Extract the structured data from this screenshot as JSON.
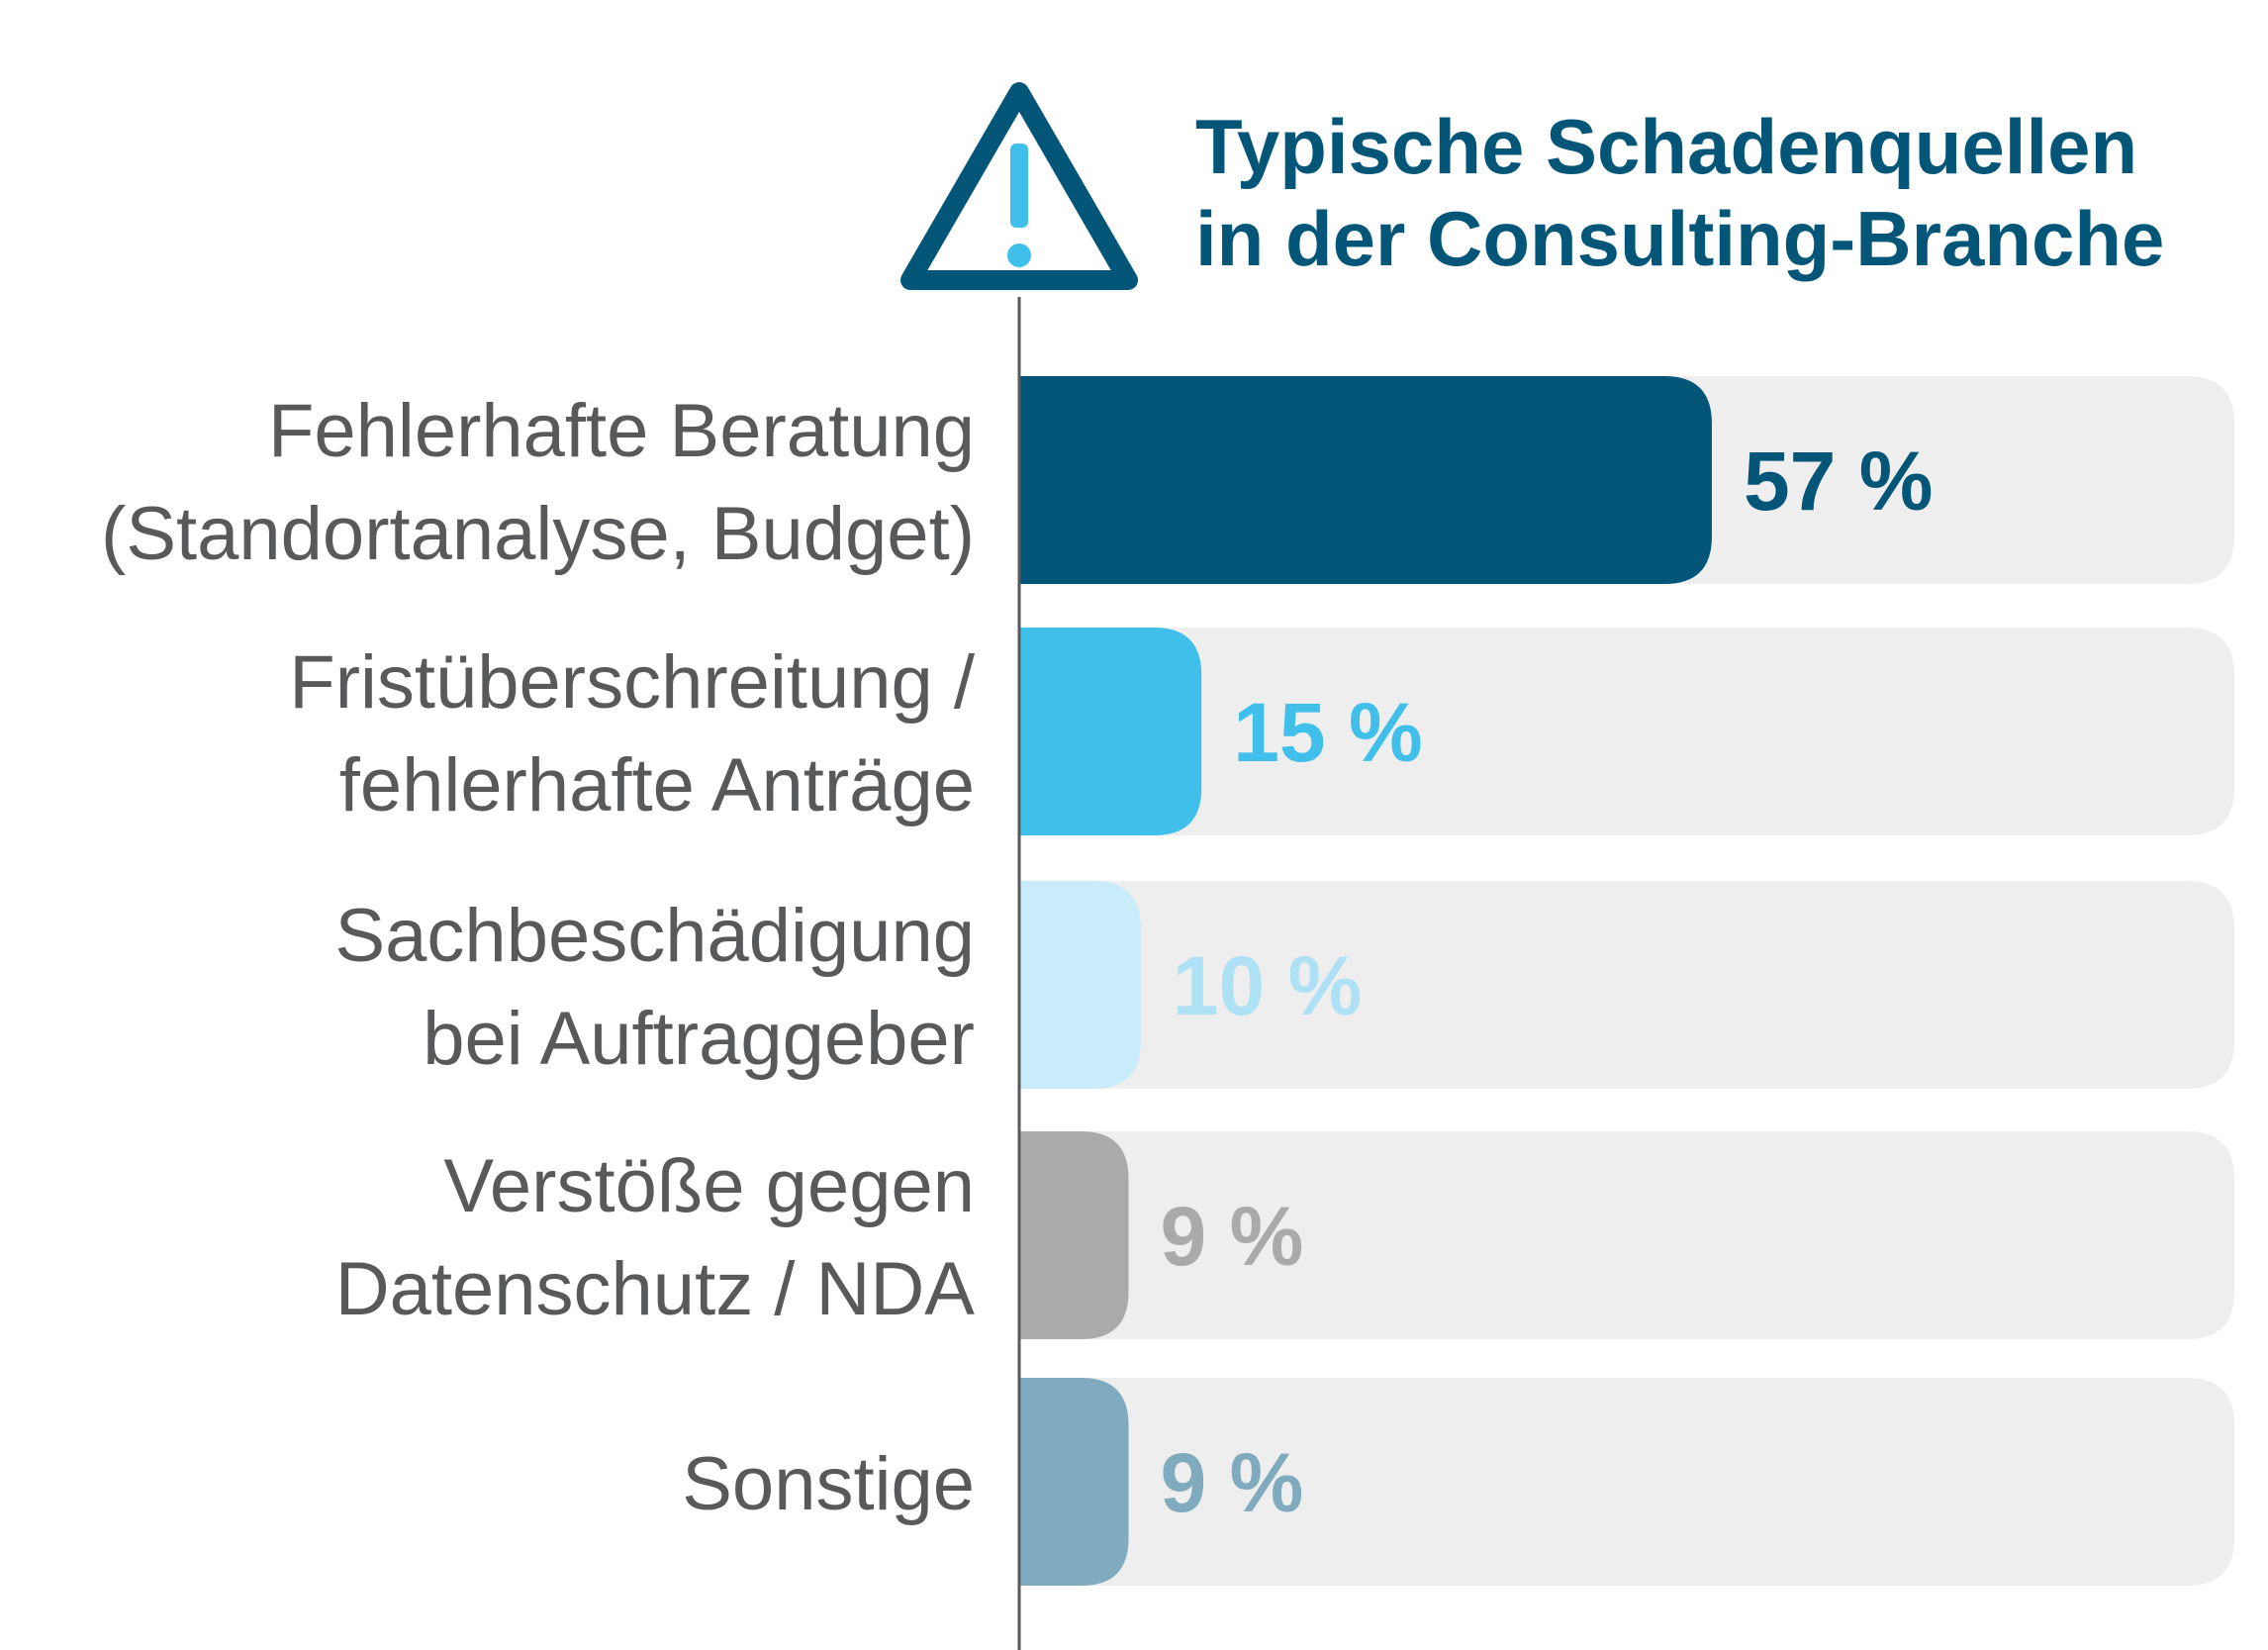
{
  "chart_data": {
    "type": "bar",
    "orientation": "horizontal",
    "title": [
      "Typische Schadenquellen",
      "in der Consulting-Branche"
    ],
    "categories": [
      [
        "Fehlerhafte Beratung",
        "(Standortanalyse, Budget)"
      ],
      [
        "Fristüberschreitung /",
        "fehlerhafte Anträge"
      ],
      [
        "Sachbeschädigung",
        "bei Auftraggeber"
      ],
      [
        "Verstöße gegen",
        "Datenschutz / NDA"
      ],
      [
        "Sonstige"
      ]
    ],
    "values": [
      57,
      15,
      10,
      9,
      9
    ],
    "value_labels": [
      "57 %",
      "15 %",
      "10 %",
      "9 %",
      "9 %"
    ],
    "xlim": [
      0,
      100
    ],
    "grid": false,
    "legend": "none",
    "icon": "warning-triangle-icon",
    "colors": {
      "title": "#035677",
      "category_text": "#58595b",
      "track": "#eeeeee",
      "axis": "#58595b",
      "icon_outline": "#035677",
      "icon_exclamation": "#3fbfe9",
      "bars": [
        "#035677",
        "#40bfea",
        "#c9ecfa",
        "#aaaaaa",
        "#80aabd"
      ],
      "value_text": [
        "#035677",
        "#40bfea",
        "#aee1f5",
        "#aaaaaa",
        "#80aabd"
      ]
    }
  }
}
